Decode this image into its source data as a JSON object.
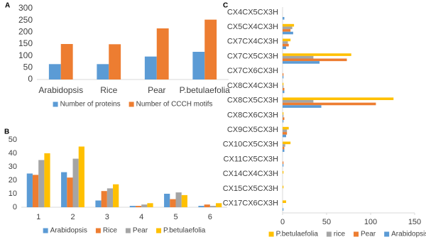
{
  "chart_data": [
    {
      "type": "bar",
      "panel_label": "A",
      "categories": [
        "Arabidopsis",
        "Rice",
        "Pear",
        "P.betulaefolia"
      ],
      "series": [
        {
          "name": "Number of proteins",
          "color": "#5b9bd5",
          "values": [
            65,
            65,
            97,
            117
          ]
        },
        {
          "name": "Number of CCCH motifs",
          "color": "#ed7d31",
          "values": [
            150,
            149,
            216,
            253
          ]
        }
      ],
      "ylim": [
        0,
        300
      ],
      "yticks": [
        0,
        50,
        100,
        150,
        200,
        250,
        300
      ]
    },
    {
      "type": "bar",
      "panel_label": "B",
      "categories": [
        "1",
        "2",
        "3",
        "4",
        "5",
        "6"
      ],
      "series": [
        {
          "name": "Arabidopsis",
          "color": "#5b9bd5",
          "values": [
            25,
            26,
            5,
            1,
            10,
            1
          ]
        },
        {
          "name": "Rice",
          "color": "#ed7d31",
          "values": [
            24,
            22,
            12,
            1,
            6,
            2
          ]
        },
        {
          "name": "Pear",
          "color": "#a5a5a5",
          "values": [
            35,
            36,
            14,
            2,
            11,
            1
          ]
        },
        {
          "name": "P.betulaefolia",
          "color": "#ffc000",
          "values": [
            40,
            45,
            17,
            3,
            9,
            3
          ]
        }
      ],
      "ylim": [
        0,
        50
      ],
      "yticks": [
        0,
        10,
        20,
        30,
        40,
        50
      ]
    },
    {
      "type": "bar",
      "orientation": "horizontal",
      "panel_label": "C",
      "categories": [
        "CX4CX5CX3H",
        "CX5CX4CX3H",
        "CX7CX4CX3H",
        "CX7CX5CX3H",
        "CX7CX6CX3H",
        "CX8CX4CX3H",
        "CX8CX5CX3H",
        "CX8CX6CX3H",
        "CX9CX5CX3H",
        "CX10CX5CX3H",
        "CX11CX5CX3H",
        "CX14CX4CX3H",
        "CX15CX5CX3H",
        "CX17CX6CX3H"
      ],
      "series": [
        {
          "name": "P.betulaefolia",
          "color": "#ffc000",
          "values": [
            0,
            13,
            9,
            78,
            0,
            1,
            126,
            1,
            7,
            9,
            0,
            1,
            1,
            4
          ]
        },
        {
          "name": "rice",
          "color": "#a5a5a5",
          "values": [
            0,
            11,
            6,
            35,
            0,
            1,
            35,
            1,
            5,
            3,
            0,
            0,
            0,
            0
          ]
        },
        {
          "name": "Pear",
          "color": "#ed7d31",
          "values": [
            0,
            9,
            7,
            73,
            1,
            2,
            106,
            2,
            5,
            2,
            1,
            0,
            0,
            0
          ]
        },
        {
          "name": "Arabidopsis",
          "color": "#5b9bd5",
          "values": [
            2,
            12,
            4,
            42,
            1,
            2,
            44,
            1,
            4,
            2,
            1,
            0,
            0,
            1
          ]
        }
      ],
      "xlim": [
        0,
        150
      ],
      "xticks": [
        0,
        50,
        100,
        150
      ]
    }
  ]
}
